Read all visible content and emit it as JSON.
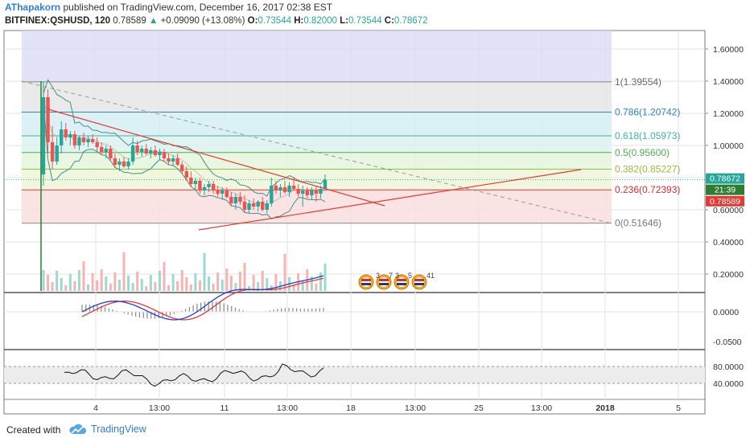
{
  "header": {
    "author": "AThapakorn",
    "published": "published on TradingView.com, December 16, 2017 02:38 EST",
    "symbol": "BITFINEX:QSHUSD, 120",
    "last": "0.78589",
    "change_arrow": "▲",
    "change": "+0.09090 (+13.08%)",
    "o_label": "O:",
    "o_value": "0.73544",
    "h_label": "H:",
    "h_value": "0.82000",
    "l_label": "L:",
    "l_value": "0.73544",
    "c_label": "C:",
    "c_value": "0.78672"
  },
  "footer": {
    "created_with": "Created with",
    "brand": "TradingView"
  },
  "colors": {
    "up": "#26a69a",
    "down": "#ef5350",
    "macd": "#1f3ed6",
    "signal": "#e53935",
    "bb": "#3f8f8f",
    "trend": "#e53935",
    "accent": "#2f7fd0"
  },
  "chart_data": {
    "type": "candlestick",
    "price_axis": {
      "ticks": [
        1.6,
        1.4,
        1.2,
        1.0,
        0.8,
        0.6,
        0.4,
        0.2
      ],
      "tick_labels": [
        "1.60000",
        "1.40000",
        "1.20000",
        "1.00000",
        "0.80000",
        "0.60000",
        "0.40000",
        "0.20000"
      ]
    },
    "macd_axis": {
      "ticks": [
        0.0,
        -0.05
      ],
      "tick_labels": [
        "0.0000",
        "-0.0500"
      ]
    },
    "rsi_axis": {
      "ticks": [
        80,
        40
      ],
      "tick_labels": [
        "80.0000",
        "40.0000"
      ]
    },
    "time_axis": [
      "4",
      "13:00",
      "11",
      "13:00",
      "18",
      "13:00",
      "25",
      "13:00",
      "2018",
      "5"
    ],
    "price_tags": {
      "close": "0.78672",
      "countdown": "21:39",
      "last": "0.78589"
    },
    "fibonacci": [
      {
        "label": "1(1.39554)",
        "value": 1.39554
      },
      {
        "label": "0.786(1.20742)",
        "value": 1.20742
      },
      {
        "label": "0.618(1.05973)",
        "value": 1.05973
      },
      {
        "label": "0.5(0.95600)",
        "value": 0.956
      },
      {
        "label": "0.382(0.85227)",
        "value": 0.85227
      },
      {
        "label": "0.236(0.72393)",
        "value": 0.72393
      },
      {
        "label": "0(0.51646)",
        "value": 0.51646
      }
    ],
    "event_badges": [
      "3",
      "7",
      "3",
      "5",
      "41"
    ],
    "candles": [
      [
        0.82,
        1.4,
        0.75,
        1.3
      ],
      [
        1.3,
        1.35,
        0.95,
        1.02
      ],
      [
        1.02,
        1.12,
        0.85,
        0.9
      ],
      [
        0.9,
        1.05,
        0.88,
        1.0
      ],
      [
        1.0,
        1.15,
        0.95,
        1.1
      ],
      [
        1.1,
        1.14,
        1.03,
        1.05
      ],
      [
        1.05,
        1.09,
        1.0,
        1.07
      ],
      [
        1.07,
        1.09,
        0.98,
        1.0
      ],
      [
        1.0,
        1.06,
        0.97,
        1.05
      ],
      [
        1.05,
        1.08,
        1.0,
        1.02
      ],
      [
        1.02,
        1.06,
        0.99,
        1.04
      ],
      [
        1.04,
        1.07,
        1.01,
        1.02
      ],
      [
        1.02,
        1.05,
        0.96,
        0.99
      ],
      [
        0.99,
        1.02,
        0.94,
        0.96
      ],
      [
        0.96,
        1.0,
        0.92,
        0.98
      ],
      [
        0.98,
        1.0,
        0.9,
        0.92
      ],
      [
        0.92,
        0.95,
        0.86,
        0.88
      ],
      [
        0.88,
        0.92,
        0.84,
        0.9
      ],
      [
        0.9,
        0.93,
        0.86,
        0.87
      ],
      [
        0.87,
        0.92,
        0.85,
        0.9
      ],
      [
        0.9,
        1.05,
        0.88,
        1.0
      ],
      [
        1.0,
        1.03,
        0.94,
        0.96
      ],
      [
        0.96,
        1.0,
        0.93,
        0.98
      ],
      [
        0.98,
        1.01,
        0.94,
        0.95
      ],
      [
        0.95,
        0.99,
        0.92,
        0.97
      ],
      [
        0.97,
        1.0,
        0.93,
        0.94
      ],
      [
        0.94,
        0.98,
        0.91,
        0.96
      ],
      [
        0.96,
        0.98,
        0.9,
        0.92
      ],
      [
        0.92,
        0.95,
        0.88,
        0.9
      ],
      [
        0.9,
        0.94,
        0.87,
        0.92
      ],
      [
        0.92,
        0.95,
        0.87,
        0.88
      ],
      [
        0.88,
        0.9,
        0.82,
        0.84
      ],
      [
        0.84,
        0.87,
        0.78,
        0.8
      ],
      [
        0.8,
        0.84,
        0.74,
        0.76
      ],
      [
        0.76,
        0.8,
        0.72,
        0.78
      ],
      [
        0.78,
        0.8,
        0.7,
        0.72
      ],
      [
        0.72,
        0.76,
        0.69,
        0.74
      ],
      [
        0.74,
        0.78,
        0.71,
        0.76
      ],
      [
        0.76,
        0.78,
        0.7,
        0.72
      ],
      [
        0.72,
        0.75,
        0.68,
        0.7
      ],
      [
        0.7,
        0.74,
        0.66,
        0.72
      ],
      [
        0.72,
        0.74,
        0.67,
        0.68
      ],
      [
        0.68,
        0.71,
        0.62,
        0.64
      ],
      [
        0.64,
        0.7,
        0.6,
        0.68
      ],
      [
        0.68,
        0.71,
        0.63,
        0.65
      ],
      [
        0.65,
        0.69,
        0.58,
        0.6
      ],
      [
        0.6,
        0.66,
        0.58,
        0.64
      ],
      [
        0.64,
        0.67,
        0.6,
        0.62
      ],
      [
        0.62,
        0.66,
        0.59,
        0.65
      ],
      [
        0.65,
        0.68,
        0.59,
        0.6
      ],
      [
        0.6,
        0.66,
        0.58,
        0.64
      ],
      [
        0.64,
        0.8,
        0.62,
        0.75
      ],
      [
        0.75,
        0.78,
        0.7,
        0.72
      ],
      [
        0.72,
        0.76,
        0.68,
        0.74
      ],
      [
        0.74,
        0.78,
        0.7,
        0.71
      ],
      [
        0.71,
        0.77,
        0.68,
        0.75
      ],
      [
        0.75,
        0.8,
        0.72,
        0.73
      ],
      [
        0.73,
        0.76,
        0.68,
        0.7
      ],
      [
        0.7,
        0.75,
        0.62,
        0.72
      ],
      [
        0.72,
        0.74,
        0.67,
        0.69
      ],
      [
        0.69,
        0.74,
        0.66,
        0.72
      ],
      [
        0.72,
        0.75,
        0.65,
        0.7
      ],
      [
        0.7,
        0.75,
        0.67,
        0.73
      ],
      [
        0.73,
        0.82,
        0.73,
        0.78589
      ]
    ]
  }
}
